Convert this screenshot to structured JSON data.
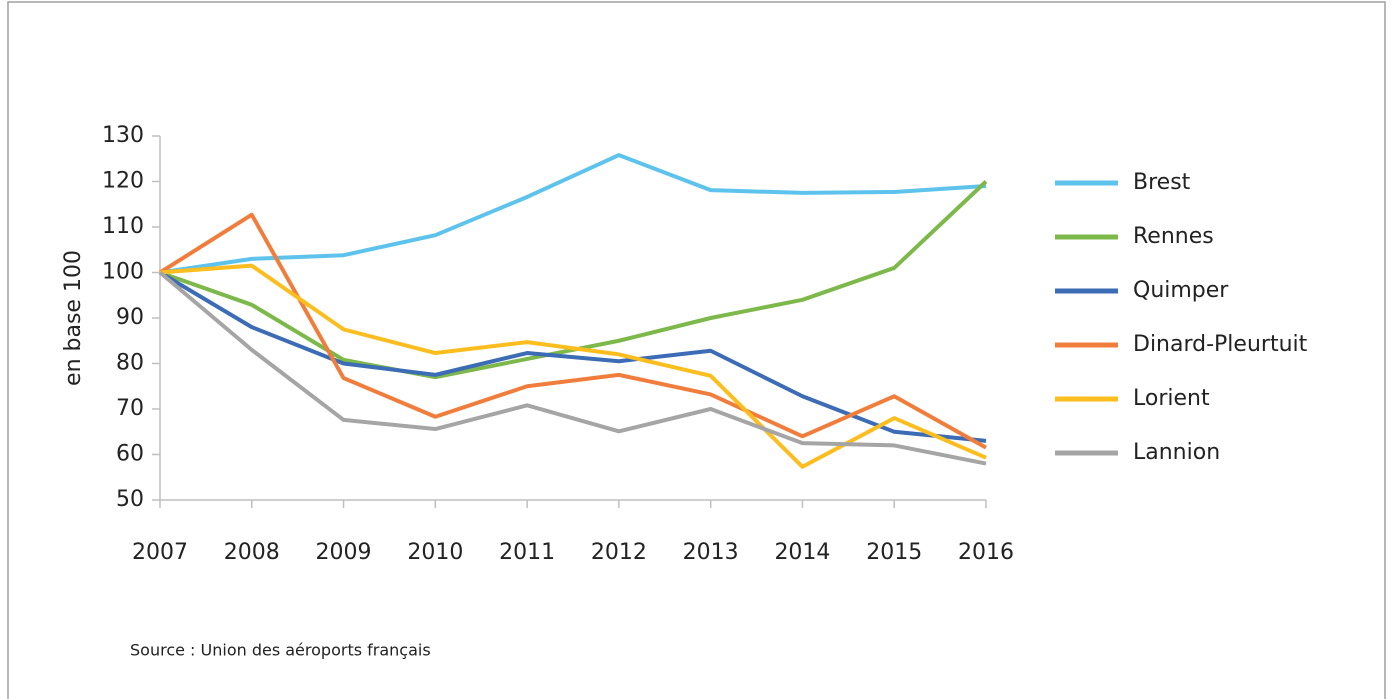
{
  "chart_data": {
    "type": "line",
    "y_axis_label": "en base 100",
    "source": "Source : Union des aéroports français",
    "categories": [
      "2007",
      "2008",
      "2009",
      "2010",
      "2011",
      "2012",
      "2013",
      "2014",
      "2015",
      "2016"
    ],
    "series": [
      {
        "name": "Brest",
        "color": "#5ec3ec",
        "values": [
          100,
          103,
          103.8,
          108.2,
          116.6,
          125.8,
          118.1,
          117.5,
          117.7,
          119
        ]
      },
      {
        "name": "Rennes",
        "color": "#7db84a",
        "values": [
          100,
          92.9,
          80.8,
          77,
          81,
          85,
          90,
          94,
          101,
          120
        ]
      },
      {
        "name": "Quimper",
        "color": "#3b6cb5",
        "values": [
          100,
          88,
          80,
          77.5,
          82.3,
          80.5,
          82.8,
          72.8,
          65,
          63
        ]
      },
      {
        "name": "Dinard-Pleurtuit",
        "color": "#f07d3b",
        "values": [
          100,
          112.7,
          76.8,
          68.3,
          75,
          77.5,
          73.2,
          64,
          72.8,
          61.5
        ]
      },
      {
        "name": "Lorient",
        "color": "#fcbd1e",
        "values": [
          100,
          101.5,
          87.5,
          82.3,
          84.7,
          82,
          77.3,
          57.3,
          68,
          59.3
        ]
      },
      {
        "name": "Lannion",
        "color": "#a5a5a5",
        "values": [
          100,
          83,
          67.6,
          65.6,
          70.8,
          65.1,
          70,
          62.5,
          62,
          58
        ]
      }
    ],
    "ylim": [
      50,
      130
    ],
    "yticks": [
      50,
      60,
      70,
      80,
      90,
      100,
      110,
      120,
      130
    ],
    "legend": "right"
  }
}
